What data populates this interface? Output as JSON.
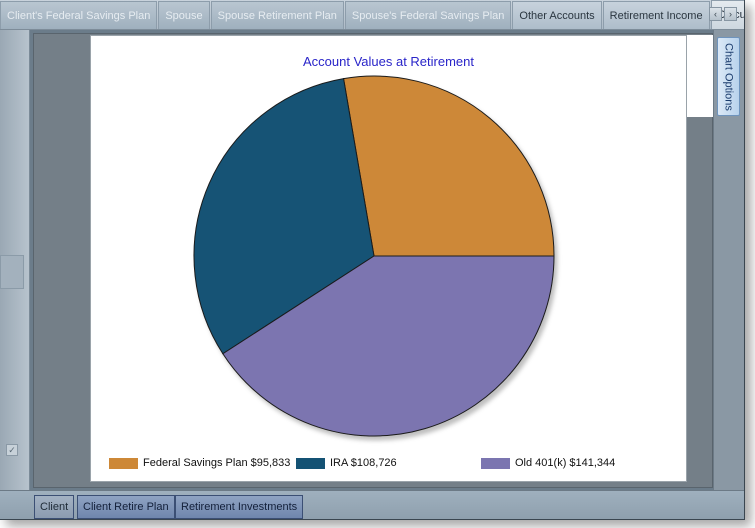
{
  "tabs": [
    {
      "label": "Client's Federal Savings Plan",
      "state": "dim"
    },
    {
      "label": "Spouse",
      "state": "dim"
    },
    {
      "label": "Spouse Retirement Plan",
      "state": "dim"
    },
    {
      "label": "Spouse's Federal Savings Plan",
      "state": "dim"
    },
    {
      "label": "Other Accounts",
      "state": "normal"
    },
    {
      "label": "Retirement Income",
      "state": "normal"
    },
    {
      "label": "Calcula",
      "state": "active"
    }
  ],
  "tab_arrows": {
    "left": "‹",
    "right": "›"
  },
  "side_tab": {
    "label": "Chart Options"
  },
  "bottom_tabs": [
    {
      "label": "Client"
    },
    {
      "label": "Client Retire Plan"
    },
    {
      "label": "Retirement Investments"
    }
  ],
  "chart_data": {
    "type": "pie",
    "title": "Account Values at Retirement",
    "slices": [
      {
        "name": "Federal Savings Plan",
        "value": 95833,
        "label": "Federal Savings Plan $95,833",
        "color": "#cd8837"
      },
      {
        "name": "IRA",
        "value": 108726,
        "label": "IRA $108,726",
        "color": "#145274"
      },
      {
        "name": "Old 401(k)",
        "value": 141344,
        "label": "Old 401(k) $141,344",
        "color": "#7b75b0"
      }
    ],
    "legend": "bottom",
    "title_color": "#2a25c9"
  }
}
